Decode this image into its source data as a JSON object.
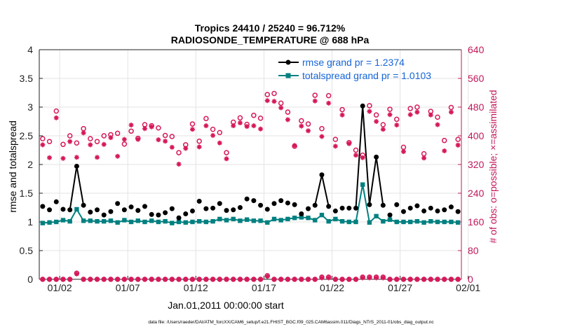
{
  "chart_data": {
    "type": "line",
    "title_line1": "Tropics 24410 / 25240 = 96.712%",
    "title_line2": "RADIOSONDE_TEMPERATURE @ 688 hPa",
    "xlabel": "Jan.01,2011 00:00:00 start",
    "ylabel_left": "rmse and totalspread",
    "ylabel_right": "# of obs: o=possible; ×=assimilated",
    "footer": "data file: /Users/raeder/DAI/ATM_forcXX/CAM6_setup/f.e21.FHIST_BGC.f09_025.CAM6assim.011/Diags_NTrS_2011-01/obs_diag_output.nc",
    "xlim": [
      0.5,
      31.5
    ],
    "ylim_left": [
      0,
      4
    ],
    "ylim_right": [
      0,
      640
    ],
    "x_ticks": [
      2,
      7,
      12,
      17,
      22,
      27,
      32
    ],
    "x_tick_labels": [
      "01/02",
      "01/07",
      "01/12",
      "01/17",
      "01/22",
      "01/27",
      "02/01"
    ],
    "y_left_ticks": [
      "0",
      "0.5",
      "1",
      "1.5",
      "2",
      "2.5",
      "3",
      "3.5",
      "4"
    ],
    "y_right_ticks": [
      "0",
      "80",
      "160",
      "240",
      "320",
      "400",
      "480",
      "560",
      "640"
    ],
    "legend": {
      "rmse": "rmse grand pr = 1.2374",
      "spread": "totalspread grand pr = 1.0103"
    },
    "colors": {
      "rmse": "#000000",
      "spread": "#008080",
      "obs": "#d6185a",
      "axis_right": "#c2185b"
    },
    "x": [
      0.75,
      1.25,
      1.75,
      2.25,
      2.75,
      3.25,
      3.75,
      4.25,
      4.75,
      5.25,
      5.75,
      6.25,
      6.75,
      7.25,
      7.75,
      8.25,
      8.75,
      9.25,
      9.75,
      10.25,
      10.75,
      11.25,
      11.75,
      12.25,
      12.75,
      13.25,
      13.75,
      14.25,
      14.75,
      15.25,
      15.75,
      16.25,
      16.75,
      17.25,
      17.75,
      18.25,
      18.75,
      19.25,
      19.75,
      20.25,
      20.75,
      21.25,
      21.75,
      22.25,
      22.75,
      23.25,
      23.75,
      24.25,
      24.75,
      25.25,
      25.75,
      26.25,
      26.75,
      27.25,
      27.75,
      28.25,
      28.75,
      29.25,
      29.75,
      30.25,
      30.75,
      31.25
    ],
    "series": [
      {
        "name": "rmse",
        "values": [
          1.27,
          1.21,
          1.35,
          1.22,
          1.21,
          1.97,
          1.29,
          1.17,
          1.21,
          1.12,
          1.18,
          1.32,
          1.21,
          1.26,
          1.2,
          1.27,
          1.13,
          1.12,
          1.16,
          1.23,
          1.07,
          1.14,
          1.19,
          1.36,
          1.23,
          1.24,
          1.32,
          1.2,
          1.21,
          1.25,
          1.4,
          1.37,
          1.29,
          1.22,
          1.32,
          1.37,
          1.33,
          1.3,
          1.14,
          1.23,
          1.29,
          1.82,
          1.27,
          1.19,
          1.24,
          1.24,
          1.24,
          3.02,
          1.3,
          2.13,
          1.29,
          1.12,
          1.3,
          1.18,
          1.24,
          1.28,
          1.19,
          1.24,
          1.19,
          1.21,
          1.26,
          1.18
        ]
      },
      {
        "name": "totalspread",
        "values": [
          0.98,
          0.99,
          1.0,
          1.03,
          1.01,
          1.22,
          1.02,
          1.02,
          1.01,
          1.01,
          1.02,
          0.99,
          1.03,
          1.0,
          1.02,
          1.0,
          1.02,
          1.0,
          1.01,
          0.98,
          1.0,
          0.99,
          1.0,
          1.01,
          1.0,
          1.01,
          1.05,
          1.03,
          1.05,
          1.02,
          1.04,
          1.02,
          1.02,
          0.99,
          1.05,
          1.03,
          1.05,
          1.07,
          1.08,
          1.07,
          1.03,
          1.12,
          1.01,
          1.05,
          1.01,
          1.0,
          1.0,
          1.65,
          0.99,
          1.1,
          1.01,
          1.04,
          1.0,
          1.0,
          1.0,
          1.01,
          0.99,
          1.01,
          1.0,
          1.0,
          1.0,
          0.99
        ]
      },
      {
        "name": "obs_possible",
        "values": [
          392,
          384,
          469,
          376,
          400,
          380,
          420,
          392,
          384,
          400,
          403,
          407,
          377,
          413,
          393,
          431,
          428,
          422,
          401,
          398,
          353,
          375,
          433,
          385,
          448,
          418,
          409,
          353,
          438,
          450,
          432,
          457,
          449,
          515,
          518,
          491,
          466,
          371,
          442,
          433,
          513,
          420,
          512,
          390,
          473,
          381,
          360,
          346,
          484,
          458,
          431,
          474,
          446,
          368,
          476,
          480,
          350,
          468,
          452,
          387,
          479,
          390
        ]
      },
      {
        "name": "obs_assimilated",
        "values": [
          375,
          339,
          450,
          337,
          384,
          340,
          408,
          375,
          340,
          376,
          395,
          343,
          390,
          430,
          390,
          420,
          425,
          389,
          385,
          368,
          321,
          365,
          418,
          369,
          428,
          401,
          380,
          336,
          428,
          436,
          426,
          428,
          419,
          498,
          496,
          478,
          445,
          373,
          427,
          414,
          497,
          398,
          491,
          371,
          458,
          378,
          346,
          339,
          468,
          440,
          418,
          459,
          430,
          356,
          459,
          466,
          338,
          458,
          431,
          358,
          466,
          374
        ]
      },
      {
        "name": "obs_possible_bottom",
        "values": [
          0,
          0,
          0,
          0,
          0,
          17,
          0,
          0,
          0,
          0,
          0,
          0,
          0,
          0,
          0,
          0,
          0,
          0,
          0,
          0,
          0,
          0,
          0,
          0,
          0,
          0,
          0,
          0,
          0,
          0,
          0,
          0,
          0,
          10,
          0,
          0,
          0,
          0,
          0,
          0,
          0,
          6,
          6,
          0,
          0,
          0,
          0,
          6,
          6,
          6,
          6,
          0,
          0,
          0,
          0,
          0,
          0,
          0,
          0,
          0,
          0,
          0
        ]
      },
      {
        "name": "obs_assimilated_bottom",
        "values": [
          0,
          0,
          0,
          0,
          0,
          15,
          0,
          0,
          0,
          0,
          0,
          0,
          0,
          0,
          0,
          0,
          0,
          0,
          0,
          0,
          0,
          0,
          0,
          0,
          0,
          0,
          0,
          0,
          0,
          0,
          0,
          0,
          0,
          8,
          0,
          0,
          0,
          0,
          0,
          0,
          0,
          4,
          4,
          0,
          0,
          0,
          0,
          4,
          4,
          4,
          4,
          0,
          0,
          0,
          0,
          0,
          0,
          0,
          0,
          0,
          0,
          0
        ]
      }
    ]
  }
}
